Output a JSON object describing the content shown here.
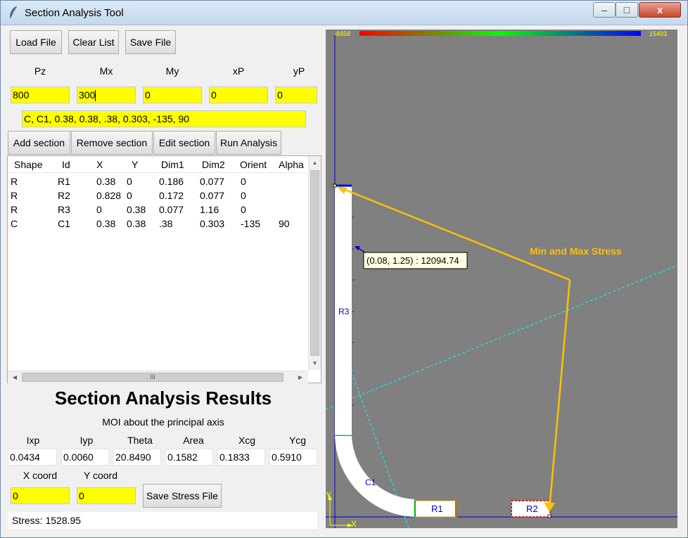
{
  "window": {
    "title": "Section Analysis Tool",
    "minimize": "–",
    "maximize": "□",
    "close": "x"
  },
  "toolbar": {
    "load": "Load File",
    "clear": "Clear List",
    "save": "Save File"
  },
  "loads": {
    "headers": [
      "Pz",
      "Mx",
      "My",
      "xP",
      "yP"
    ],
    "values": [
      "800",
      "300",
      "0",
      "0",
      "0"
    ]
  },
  "section_input": "C, C1, 0.38, 0.38, .38, 0.303, -135, 90",
  "section_buttons": {
    "add": "Add section",
    "remove": "Remove section",
    "edit": "Edit section",
    "run": "Run Analysis"
  },
  "table": {
    "columns": [
      "Shape",
      "Id",
      "X",
      "Y",
      "Dim1",
      "Dim2",
      "Orient",
      "Alpha"
    ],
    "rows": [
      [
        "R",
        "R1",
        "0.38",
        "0",
        "0.186",
        "0.077",
        "0",
        ""
      ],
      [
        "R",
        "R2",
        "0.828",
        "0",
        "0.172",
        "0.077",
        "0",
        ""
      ],
      [
        "R",
        "R3",
        "0",
        "0.38",
        "0.077",
        "1.16",
        "0",
        ""
      ],
      [
        "C",
        "C1",
        "0.38",
        "0.38",
        ".38",
        "0.303",
        "-135",
        "90"
      ]
    ],
    "scroll_up": "▲",
    "scroll_down": "▼",
    "scroll_left": "◀",
    "scroll_right": "▶",
    "thumb_grip": "III"
  },
  "results": {
    "title": "Section Analysis Results",
    "subtitle": "MOI about the principal axis",
    "headers": [
      "Ixp",
      "Iyp",
      "Theta",
      "Area",
      "Xcg",
      "Ycg"
    ],
    "values": [
      "0.0434",
      "0.0060",
      "20.8490",
      "0.1582",
      "0.1833",
      "0.5910"
    ]
  },
  "coords": {
    "x_label": "X coord",
    "y_label": "Y coord",
    "x_value": "0",
    "y_value": "0",
    "save_stress": "Save Stress File"
  },
  "status": "Stress: 1528.95",
  "plot": {
    "scale_min": "-8458",
    "scale_max": "15493",
    "tooltip": "(0.08, 1.25) : 12094.74",
    "annotation": "Min and Max Stress",
    "labels": {
      "r1": "R1",
      "r2": "R2",
      "r3": "R3",
      "c1": "C1",
      "x_axis": "X",
      "y_axis": "Y"
    },
    "colors": {
      "background": "#808080",
      "arrow": "#ffc000",
      "axis": "#0000cc",
      "neutral_axis": "#00ffff",
      "label_text": "#0000cc",
      "scale_text": "#ffff00"
    }
  }
}
